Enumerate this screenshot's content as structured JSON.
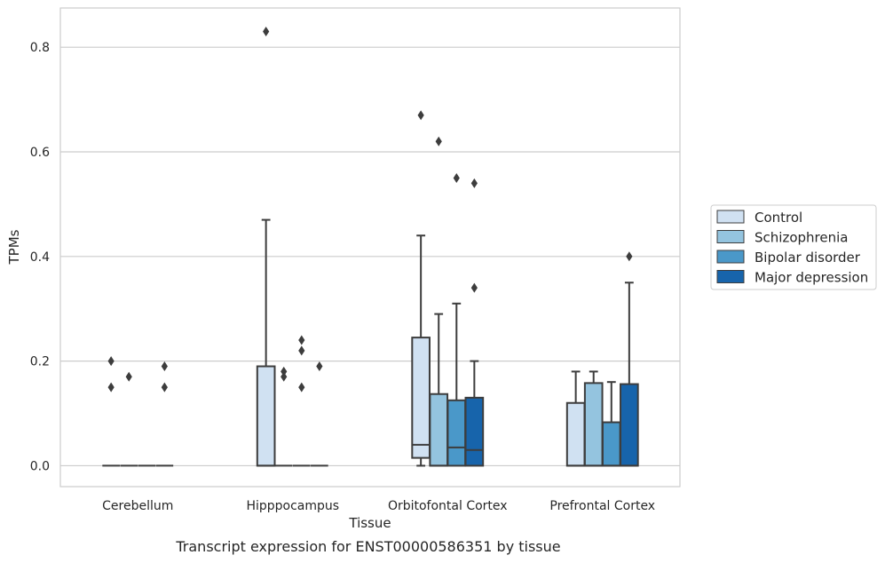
{
  "caption": "Transcript expression for ENST00000586351 by tissue",
  "chart_data": {
    "type": "box",
    "xlabel": "Tissue",
    "ylabel": "TPMs",
    "ylim": [
      -0.04,
      0.875
    ],
    "yticks": [
      0.0,
      0.2,
      0.4,
      0.6,
      0.8
    ],
    "ytick_labels": [
      "0.0",
      "0.2",
      "0.4",
      "0.6",
      "0.8"
    ],
    "grid": "horizontal",
    "legend_position": "center-right",
    "categories": [
      "Cerebellum",
      "Hipppocampus",
      "Orbitofontal Cortex",
      "Prefrontal Cortex"
    ],
    "series": [
      {
        "name": "Control",
        "color": "#d0e1f2",
        "boxes": [
          {
            "q1": 0.0,
            "median": 0.0,
            "q3": 0.0,
            "whisker_low": 0.0,
            "whisker_high": 0.0,
            "outliers": [
              0.2,
              0.15
            ]
          },
          {
            "q1": 0.0,
            "median": 0.0,
            "q3": 0.19,
            "whisker_low": 0.0,
            "whisker_high": 0.47,
            "outliers": [
              0.83
            ]
          },
          {
            "q1": 0.015,
            "median": 0.04,
            "q3": 0.245,
            "whisker_low": 0.0,
            "whisker_high": 0.44,
            "outliers": [
              0.67
            ]
          },
          {
            "q1": 0.0,
            "median": 0.0,
            "q3": 0.12,
            "whisker_low": 0.0,
            "whisker_high": 0.18,
            "outliers": []
          }
        ]
      },
      {
        "name": "Schizophrenia",
        "color": "#94c4df",
        "boxes": [
          {
            "q1": 0.0,
            "median": 0.0,
            "q3": 0.0,
            "whisker_low": 0.0,
            "whisker_high": 0.0,
            "outliers": [
              0.17
            ]
          },
          {
            "q1": 0.0,
            "median": 0.0,
            "q3": 0.0,
            "whisker_low": 0.0,
            "whisker_high": 0.0,
            "outliers": [
              0.18,
              0.17
            ]
          },
          {
            "q1": 0.0,
            "median": 0.0,
            "q3": 0.137,
            "whisker_low": 0.0,
            "whisker_high": 0.29,
            "outliers": [
              0.62
            ]
          },
          {
            "q1": 0.0,
            "median": 0.0,
            "q3": 0.158,
            "whisker_low": 0.0,
            "whisker_high": 0.18,
            "outliers": []
          }
        ]
      },
      {
        "name": "Bipolar disorder",
        "color": "#4a98c9",
        "boxes": [
          {
            "q1": 0.0,
            "median": 0.0,
            "q3": 0.0,
            "whisker_low": 0.0,
            "whisker_high": 0.0,
            "outliers": []
          },
          {
            "q1": 0.0,
            "median": 0.0,
            "q3": 0.0,
            "whisker_low": 0.0,
            "whisker_high": 0.0,
            "outliers": [
              0.24,
              0.22,
              0.15
            ]
          },
          {
            "q1": 0.0,
            "median": 0.035,
            "q3": 0.125,
            "whisker_low": 0.0,
            "whisker_high": 0.31,
            "outliers": [
              0.55
            ]
          },
          {
            "q1": 0.0,
            "median": 0.0,
            "q3": 0.083,
            "whisker_low": 0.0,
            "whisker_high": 0.16,
            "outliers": []
          }
        ]
      },
      {
        "name": "Major depression",
        "color": "#1764ab",
        "boxes": [
          {
            "q1": 0.0,
            "median": 0.0,
            "q3": 0.0,
            "whisker_low": 0.0,
            "whisker_high": 0.0,
            "outliers": [
              0.19,
              0.15
            ]
          },
          {
            "q1": 0.0,
            "median": 0.0,
            "q3": 0.0,
            "whisker_low": 0.0,
            "whisker_high": 0.0,
            "outliers": [
              0.19
            ]
          },
          {
            "q1": 0.0,
            "median": 0.03,
            "q3": 0.13,
            "whisker_low": 0.0,
            "whisker_high": 0.2,
            "outliers": [
              0.54,
              0.34
            ]
          },
          {
            "q1": 0.0,
            "median": 0.0,
            "q3": 0.156,
            "whisker_low": 0.0,
            "whisker_high": 0.35,
            "outliers": [
              0.4
            ]
          }
        ]
      }
    ]
  }
}
